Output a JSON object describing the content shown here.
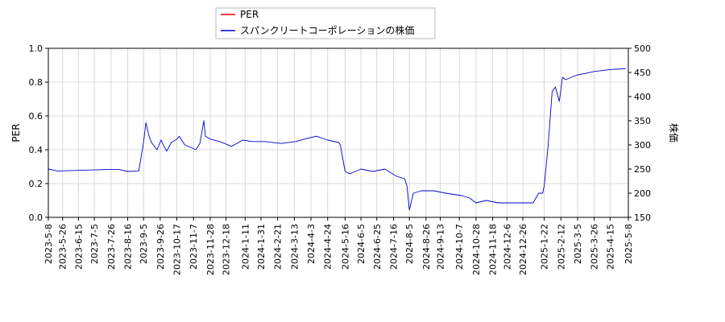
{
  "chart_data": {
    "type": "line",
    "legend": {
      "placement": "top-center",
      "entries": [
        {
          "label": "PER",
          "color": "#ff0000"
        },
        {
          "label": "スパンクリートコーポレーションの株価",
          "color": "#0000cc"
        }
      ]
    },
    "left_axis": {
      "label": "PER",
      "ylim": [
        0,
        1.0
      ],
      "ticks": [
        "0.0",
        "0.2",
        "0.4",
        "0.6",
        "0.8",
        "1.0"
      ]
    },
    "right_axis": {
      "label": "株価",
      "ylim": [
        150,
        500
      ],
      "ticks": [
        "150",
        "200",
        "250",
        "300",
        "350",
        "400",
        "450",
        "500"
      ]
    },
    "x_axis": {
      "range": [
        "2023-05-08",
        "2025-05-08"
      ],
      "ticks": [
        "2023-5-8",
        "2023-5-26",
        "2023-6-15",
        "2023-7-5",
        "2023-7-26",
        "2023-8-16",
        "2023-9-5",
        "2023-9-26",
        "2023-10-17",
        "2023-11-7",
        "2023-11-28",
        "2023-12-18",
        "2024-1-11",
        "2024-1-31",
        "2024-2-21",
        "2024-3-13",
        "2024-4-3",
        "2024-4-24",
        "2024-5-16",
        "2024-6-5",
        "2024-6-25",
        "2024-7-16",
        "2024-8-5",
        "2024-8-26",
        "2024-9-13",
        "2024-10-7",
        "2024-10-28",
        "2024-11-18",
        "2024-12-6",
        "2024-12-26",
        "2025-1-22",
        "2025-2-12",
        "2025-3-5",
        "2025-3-26",
        "2025-4-15",
        "2025-5-8"
      ]
    },
    "grid": true,
    "series": [
      {
        "name": "スパンクリートコーポレーションの株価",
        "axis": "right",
        "color": "#0000cc",
        "x": [
          "2023-05-08",
          "2023-05-20",
          "2023-06-10",
          "2023-06-30",
          "2023-07-20",
          "2023-08-05",
          "2023-08-16",
          "2023-08-30",
          "2023-09-05",
          "2023-09-08",
          "2023-09-12",
          "2023-09-15",
          "2023-09-22",
          "2023-09-27",
          "2023-10-04",
          "2023-10-10",
          "2023-10-17",
          "2023-10-20",
          "2023-10-27",
          "2023-11-03",
          "2023-11-10",
          "2023-11-15",
          "2023-11-20",
          "2023-11-22",
          "2023-11-28",
          "2023-12-10",
          "2023-12-25",
          "2024-01-08",
          "2024-01-20",
          "2024-02-05",
          "2024-02-25",
          "2024-03-15",
          "2024-03-28",
          "2024-04-10",
          "2024-04-24",
          "2024-05-08",
          "2024-05-10",
          "2024-05-16",
          "2024-05-22",
          "2024-06-05",
          "2024-06-20",
          "2024-07-05",
          "2024-07-20",
          "2024-07-30",
          "2024-08-02",
          "2024-08-05",
          "2024-08-10",
          "2024-08-20",
          "2024-09-05",
          "2024-09-20",
          "2024-10-10",
          "2024-10-20",
          "2024-10-28",
          "2024-11-10",
          "2024-11-25",
          "2024-12-10",
          "2024-12-26",
          "2025-01-08",
          "2025-01-15",
          "2025-01-20",
          "2025-01-22",
          "2025-01-27",
          "2025-02-01",
          "2025-02-05",
          "2025-02-10",
          "2025-02-14",
          "2025-02-18",
          "2025-02-25",
          "2025-03-05",
          "2025-03-15",
          "2025-03-26",
          "2025-04-15",
          "2025-05-05"
        ],
        "values": [
          250,
          246,
          247,
          248,
          249,
          249,
          245,
          246,
          305,
          346,
          318,
          305,
          290,
          310,
          287,
          305,
          312,
          318,
          300,
          295,
          290,
          303,
          350,
          318,
          312,
          307,
          297,
          310,
          307,
          307,
          303,
          307,
          313,
          318,
          310,
          305,
          300,
          245,
          240,
          250,
          245,
          250,
          235,
          230,
          215,
          165,
          200,
          205,
          205,
          200,
          195,
          190,
          180,
          185,
          180,
          180,
          180,
          180,
          200,
          200,
          215,
          300,
          410,
          420,
          390,
          440,
          435,
          440,
          445,
          448,
          452,
          456,
          458
        ]
      }
    ]
  }
}
